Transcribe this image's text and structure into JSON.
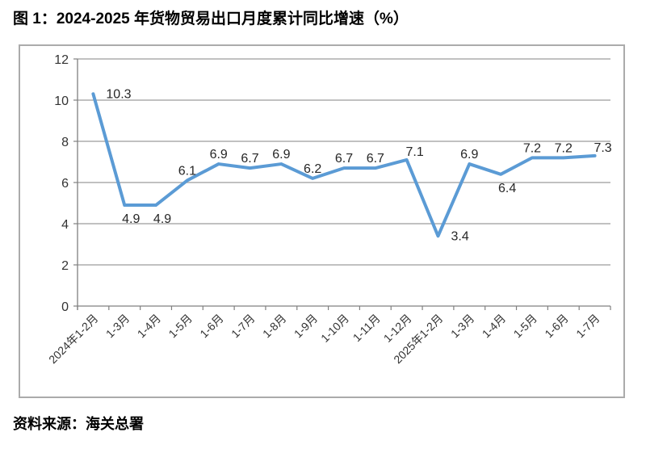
{
  "page": {
    "title": "图 1：2024-2025 年货物贸易出口月度累计同比增速（%）",
    "source": "资料来源：海关总署"
  },
  "chart_data": {
    "type": "line",
    "title": "图 1：2024-2025 年货物贸易出口月度累计同比增速（%）",
    "categories": [
      "2024年1-2月",
      "1-3月",
      "1-4月",
      "1-5月",
      "1-6月",
      "1-7月",
      "1-8月",
      "1-9月",
      "1-10月",
      "1-11月",
      "1-12月",
      "2025年1-2月",
      "1-3月",
      "1-4月",
      "1-5月",
      "1-6月",
      "1-7月"
    ],
    "values": [
      10.3,
      4.9,
      4.9,
      6.1,
      6.9,
      6.7,
      6.9,
      6.2,
      6.7,
      6.7,
      7.1,
      3.4,
      6.9,
      6.4,
      7.2,
      7.2,
      7.3
    ],
    "xlabel": "",
    "ylabel": "",
    "ylim": [
      0,
      12
    ],
    "yticks": [
      0,
      2,
      4,
      6,
      8,
      10,
      12
    ],
    "grid": true,
    "legend": "none",
    "data_labels": true,
    "label_positions": [
      "right",
      "below",
      "below",
      "above",
      "above",
      "above",
      "above",
      "above",
      "above",
      "above",
      "above-right",
      "right",
      "above",
      "below",
      "above",
      "above",
      "above-right"
    ],
    "line_color": "#5B9BD5",
    "gridline_color": "#9c9c9c",
    "axis_color": "#808080",
    "frame_border_color": "#ababab",
    "text_color": "#333333",
    "label_color": "#262626"
  }
}
